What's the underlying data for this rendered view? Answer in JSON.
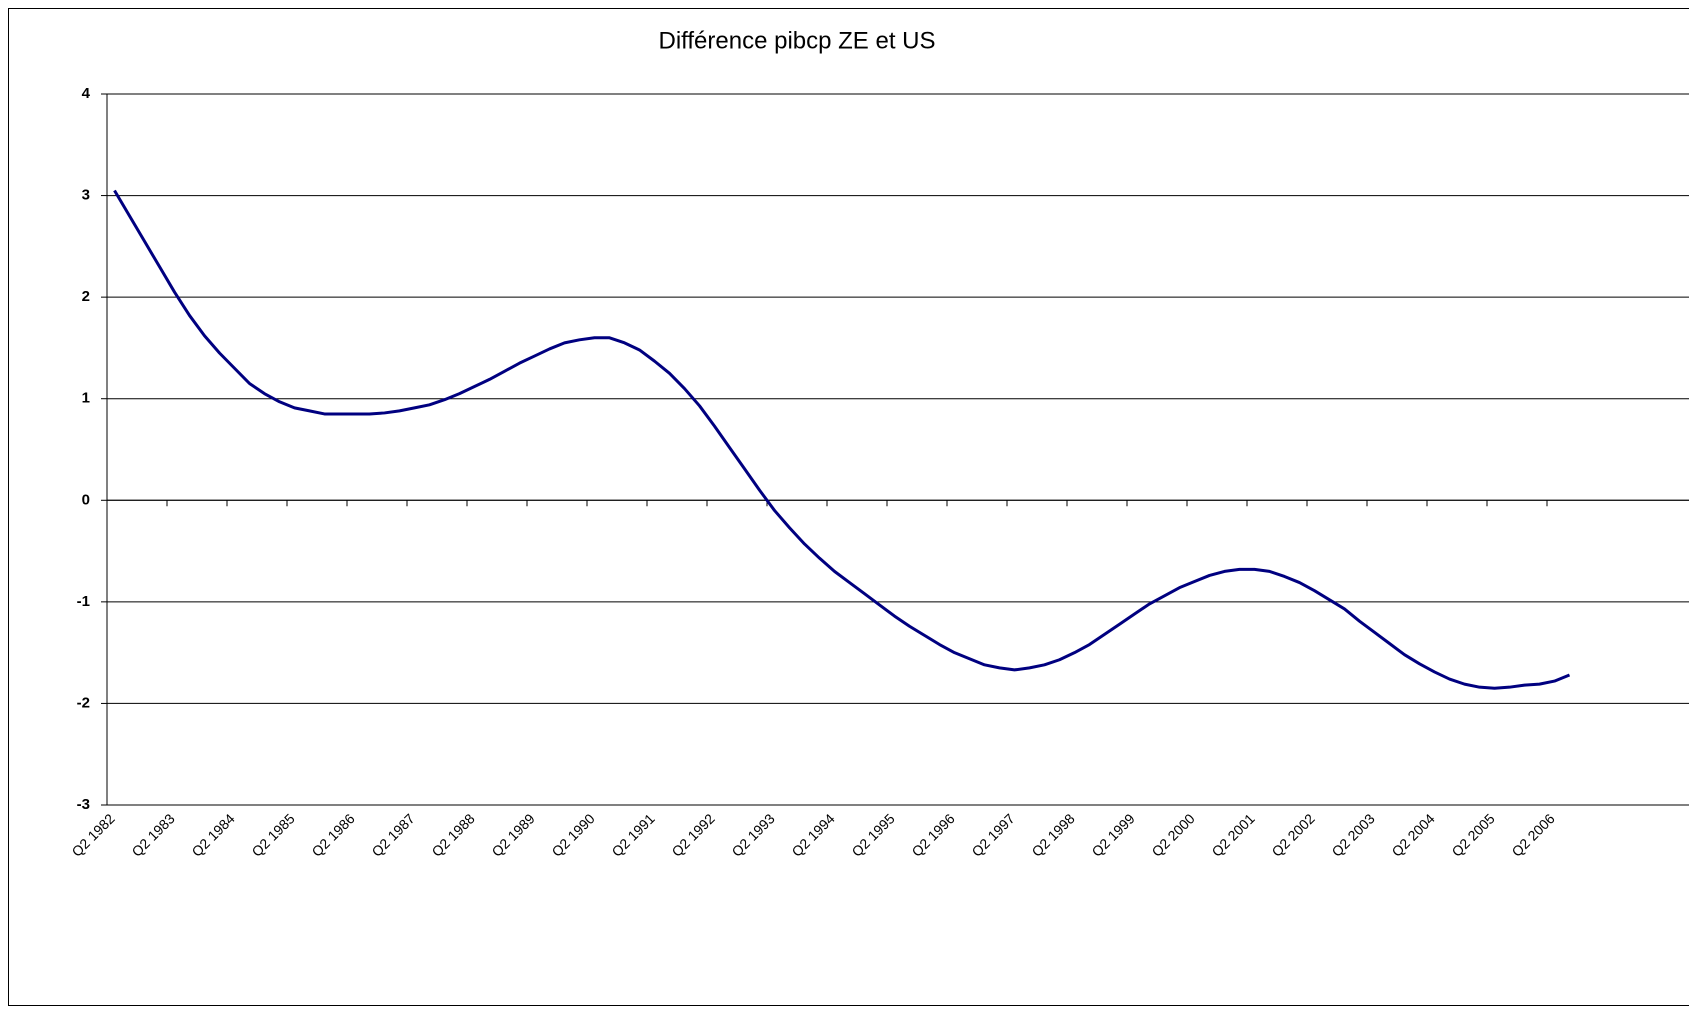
{
  "chart_data": {
    "type": "line",
    "title": "Différence pibcp ZE et US",
    "categories": [
      "Q2 1982",
      null,
      null,
      null,
      "Q2 1983",
      null,
      null,
      null,
      "Q2 1984",
      null,
      null,
      null,
      "Q2 1985",
      null,
      null,
      null,
      "Q2 1986",
      null,
      null,
      null,
      "Q2 1987",
      null,
      null,
      null,
      "Q2 1988",
      null,
      null,
      null,
      "Q2 1989",
      null,
      null,
      null,
      "Q2 1990",
      null,
      null,
      null,
      "Q2 1991",
      null,
      null,
      null,
      "Q2 1992",
      null,
      null,
      null,
      "Q2 1993",
      null,
      null,
      null,
      "Q2 1994",
      null,
      null,
      null,
      "Q2 1995",
      null,
      null,
      null,
      "Q2 1996",
      null,
      null,
      null,
      "Q2 1997",
      null,
      null,
      null,
      "Q2 1998",
      null,
      null,
      null,
      "Q2 1999",
      null,
      null,
      null,
      "Q2 2000",
      null,
      null,
      null,
      "Q2 2001",
      null,
      null,
      null,
      "Q2 2002",
      null,
      null,
      null,
      "Q2 2003",
      null,
      null,
      null,
      "Q2 2004",
      null,
      null,
      null,
      "Q2 2005",
      null,
      null,
      null,
      "Q2 2006",
      null
    ],
    "values": [
      3.05,
      2.8,
      2.55,
      2.3,
      2.05,
      1.82,
      1.62,
      1.45,
      1.3,
      1.15,
      1.05,
      0.97,
      0.91,
      0.88,
      0.85,
      0.85,
      0.85,
      0.85,
      0.86,
      0.88,
      0.91,
      0.94,
      0.99,
      1.05,
      1.12,
      1.19,
      1.27,
      1.35,
      1.42,
      1.49,
      1.55,
      1.58,
      1.6,
      1.6,
      1.55,
      1.48,
      1.37,
      1.25,
      1.1,
      0.93,
      0.73,
      0.52,
      0.31,
      0.1,
      -0.1,
      -0.27,
      -0.43,
      -0.57,
      -0.7,
      -0.81,
      -0.92,
      -1.03,
      -1.14,
      -1.24,
      -1.33,
      -1.42,
      -1.5,
      -1.56,
      -1.62,
      -1.65,
      -1.67,
      -1.65,
      -1.62,
      -1.57,
      -1.5,
      -1.42,
      -1.32,
      -1.22,
      -1.12,
      -1.02,
      -0.94,
      -0.86,
      -0.8,
      -0.74,
      -0.7,
      -0.68,
      -0.68,
      -0.7,
      -0.75,
      -0.81,
      -0.89,
      -0.98,
      -1.07,
      -1.19,
      -1.3,
      -1.41,
      -1.52,
      -1.61,
      -1.69,
      -1.76,
      -1.81,
      -1.84,
      -1.85,
      -1.84,
      -1.82,
      -1.81,
      -1.78,
      -1.72
    ],
    "color": "#000080",
    "ylim": [
      -3,
      4
    ],
    "yticks": [
      -3,
      -2,
      -1,
      0,
      1,
      2,
      3,
      4
    ],
    "grid": true
  }
}
